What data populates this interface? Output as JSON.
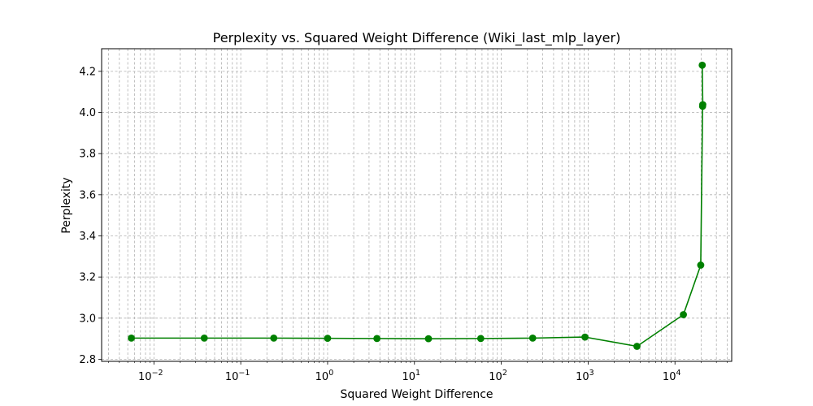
{
  "chart_data": {
    "type": "line",
    "title": "Perplexity vs. Squared Weight Difference (Wiki_last_mlp_layer)",
    "xlabel": "Squared Weight Difference",
    "ylabel": "Perplexity",
    "xscale": "log",
    "xlim": [
      0.0025,
      45000
    ],
    "ylim": [
      2.79,
      4.31
    ],
    "xticks": [
      {
        "value": 0.01,
        "base": "10",
        "exp": "−2"
      },
      {
        "value": 0.1,
        "base": "10",
        "exp": "−1"
      },
      {
        "value": 1,
        "base": "10",
        "exp": "0"
      },
      {
        "value": 10,
        "base": "10",
        "exp": "1"
      },
      {
        "value": 100,
        "base": "10",
        "exp": "2"
      },
      {
        "value": 1000,
        "base": "10",
        "exp": "3"
      },
      {
        "value": 10000,
        "base": "10",
        "exp": "4"
      }
    ],
    "yticks": [
      {
        "value": 2.8,
        "label": "2.8"
      },
      {
        "value": 3.0,
        "label": "3.0"
      },
      {
        "value": 3.2,
        "label": "3.2"
      },
      {
        "value": 3.4,
        "label": "3.4"
      },
      {
        "value": 3.6,
        "label": "3.6"
      },
      {
        "value": 3.8,
        "label": "3.8"
      },
      {
        "value": 4.0,
        "label": "4.0"
      },
      {
        "value": 4.2,
        "label": "4.2"
      }
    ],
    "grid": true,
    "grid_minor": true,
    "series": [
      {
        "color": "#008000",
        "marker": "circle",
        "x": [
          0.0055,
          0.038,
          0.24,
          1.0,
          3.7,
          14.5,
          58,
          230,
          920,
          3650,
          12500,
          19800,
          20800,
          20900,
          20600
        ],
        "y": [
          2.903,
          2.903,
          2.903,
          2.902,
          2.901,
          2.9,
          2.901,
          2.903,
          2.908,
          2.863,
          3.017,
          3.258,
          4.03,
          4.038,
          4.23
        ]
      }
    ]
  }
}
